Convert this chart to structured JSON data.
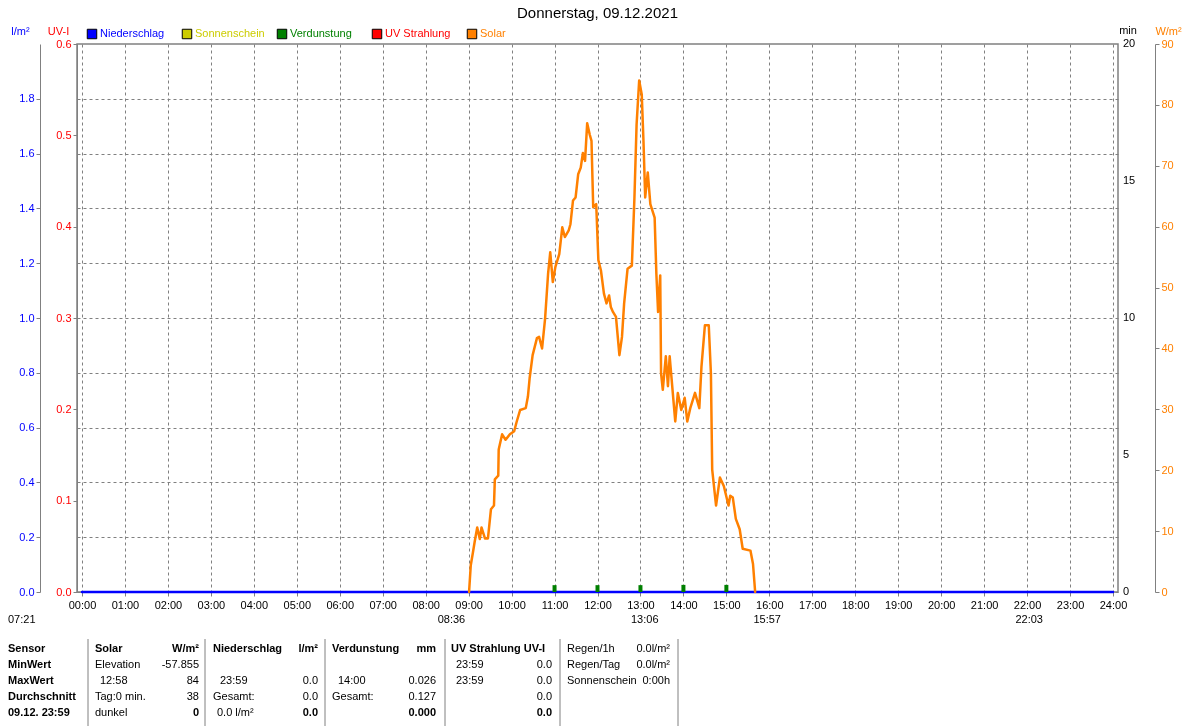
{
  "chart_data": {
    "type": "line",
    "title": "Donnerstag, 09.12.2021",
    "ylabel": "l/m²",
    "y2label": "UV-I",
    "y3label": "W/m²",
    "xlim": [
      0,
      24
    ],
    "xticks": [
      {
        "value": 0,
        "label": "00:00"
      },
      {
        "value": 1,
        "label": "01:00"
      },
      {
        "value": 2,
        "label": "02:00"
      },
      {
        "value": 3,
        "label": "03:00"
      },
      {
        "value": 4,
        "label": "04:00"
      },
      {
        "value": 5,
        "label": "05:00"
      },
      {
        "value": 6,
        "label": "06:00"
      },
      {
        "value": 7,
        "label": "07:00"
      },
      {
        "value": 8,
        "label": "08:00"
      },
      {
        "value": 9,
        "label": "09:00"
      },
      {
        "value": 10,
        "label": "10:00"
      },
      {
        "value": 11,
        "label": "11:00"
      },
      {
        "value": 12,
        "label": "12:00"
      },
      {
        "value": 13,
        "label": "13:00"
      },
      {
        "value": 14,
        "label": "14:00"
      },
      {
        "value": 15,
        "label": "15:00"
      },
      {
        "value": 16,
        "label": "16:00"
      },
      {
        "value": 17,
        "label": "17:00"
      },
      {
        "value": 18,
        "label": "18:00"
      },
      {
        "value": 19,
        "label": "19:00"
      },
      {
        "value": 20,
        "label": "20:00"
      },
      {
        "value": 21,
        "label": "21:00"
      },
      {
        "value": 22,
        "label": "22:00"
      },
      {
        "value": 23,
        "label": "23:00"
      },
      {
        "value": 24,
        "label": "24:00"
      }
    ],
    "ylim": [
      0,
      2
    ],
    "yticks": [
      {
        "value": 0,
        "label": "0.0"
      },
      0.2,
      0.4,
      0.6,
      0.8,
      {
        "value": 1,
        "label": "1.0"
      },
      1.2,
      1.4,
      1.6,
      1.8
    ],
    "y2lim": [
      0,
      0.6
    ],
    "y2ticks": [
      {
        "value": 0,
        "label": "0.0"
      },
      0.1,
      0.2,
      0.3,
      0.4,
      0.5,
      0.6
    ],
    "y3lim": [
      0,
      90
    ],
    "y3ticks": [
      0,
      10,
      20,
      30,
      40,
      50,
      60,
      70,
      80,
      90
    ],
    "grid": true,
    "legend": "top left",
    "series": [
      {
        "name": "Niederschlag",
        "color": "#0000ff",
        "x": [
          0,
          24
        ],
        "values": [
          0,
          0
        ]
      },
      {
        "name": "Sonnenschein",
        "color": "#cccc00"
      },
      {
        "name": "Verdunstung",
        "color": "#008000",
        "type": "bar",
        "x": [
          11,
          12,
          13,
          14,
          15
        ],
        "values": [
          0.025,
          0.025,
          0.025,
          0.026,
          0.026
        ]
      },
      {
        "name": "UV Strahlung",
        "color": "#ff0000",
        "axis": "y2"
      },
      {
        "name": "Solar",
        "color": "#ff8000",
        "axis": "y3",
        "x": [
          9.01,
          9.05,
          9.1,
          9.14,
          9.2,
          9.26,
          9.3,
          9.38,
          9.45,
          9.52,
          9.59,
          9.61,
          9.69,
          9.7,
          9.78,
          9.86,
          9.96,
          10.06,
          10.12,
          10.2,
          10.33,
          10.38,
          10.42,
          10.49,
          10.59,
          10.64,
          10.71,
          10.78,
          10.85,
          10.9,
          10.96,
          11.02,
          11.11,
          11.18,
          11.24,
          11.33,
          11.37,
          11.43,
          11.49,
          11.55,
          11.61,
          11.66,
          11.71,
          11.76,
          11.82,
          11.86,
          11.9,
          11.97,
          12.02,
          12.08,
          12.15,
          12.21,
          12.27,
          12.31,
          12.36,
          12.43,
          12.51,
          12.57,
          12.62,
          12.7,
          12.8,
          12.86,
          12.91,
          12.97,
          13.03,
          13.07,
          13.11,
          13.17,
          13.23,
          13.33,
          13.37,
          13.41,
          13.46,
          13.48,
          13.52,
          13.59,
          13.64,
          13.68,
          13.76,
          13.81,
          13.87,
          13.95,
          14.03,
          14.09,
          14.16,
          14.27,
          14.37,
          14.42,
          14.5,
          14.59,
          14.64,
          14.67,
          14.76,
          14.85,
          14.94,
          15.05,
          15.09,
          15.15,
          15.22,
          15.31,
          15.38,
          15.56,
          15.62,
          15.67
        ],
        "values": [
          0,
          4.4,
          6.5,
          8.2,
          10.6,
          8.7,
          10.6,
          8.8,
          8.8,
          13.6,
          14.2,
          18.5,
          19.1,
          23.4,
          25.9,
          25.0,
          25.9,
          26.4,
          28.0,
          29.9,
          30.2,
          32.1,
          35.1,
          38.9,
          41.7,
          41.9,
          40.0,
          44.9,
          52.3,
          55.8,
          50.9,
          53.4,
          55.5,
          59.9,
          58.3,
          59.4,
          60.4,
          64.3,
          64.8,
          68.6,
          69.7,
          72.1,
          70.8,
          77.0,
          75.1,
          74.1,
          63.2,
          63.7,
          54.5,
          52.8,
          49.0,
          47.4,
          48.7,
          46.8,
          46.0,
          45.2,
          38.9,
          41.9,
          47.4,
          53.1,
          53.6,
          64.8,
          76.8,
          84,
          81.7,
          74.1,
          64.8,
          68.9,
          63.7,
          61.5,
          52.3,
          46.0,
          52.0,
          35.9,
          33.2,
          38.7,
          33.8,
          38.7,
          32.1,
          28.0,
          32.7,
          29.9,
          31.9,
          28.0,
          30.2,
          32.7,
          30.2,
          37.0,
          43.8,
          43.8,
          35.9,
          20.1,
          14.2,
          18.8,
          17.4,
          14.2,
          15.8,
          15.5,
          12.0,
          10.3,
          7.1,
          6.8,
          4.6,
          0
        ]
      }
    ],
    "annotations": [
      "min",
      "20",
      "15",
      "10",
      "5",
      "0",
      "07:21",
      {
        "text": "08:36",
        "x": 8.6,
        "y": 0
      },
      {
        "text": "13:06",
        "x": 13.1,
        "y": 0
      },
      {
        "text": "15:57",
        "x": 15.95,
        "y": 0
      },
      {
        "text": "22:03",
        "x": 22.05,
        "y": 0
      },
      "Sensor",
      "Solar",
      "W/m²",
      "Niederschlag",
      "l/m²",
      "Verdunstung",
      "mm",
      "UV Strahlung UV-I",
      "Regen/1h",
      "0.0l/m²",
      "MinWert",
      "Elevation",
      "-57.855",
      "23:59",
      "0.0",
      "Regen/Tag",
      "0.0l/m²",
      "MaxWert",
      "12:58",
      "84",
      "23:59",
      "0.0",
      "14:00",
      "0.026",
      "23:59",
      "0.0",
      "Sonnenschein",
      "0:00h",
      "Durchschnitt",
      "Tag:0 min.",
      "38",
      "Gesamt:",
      "0.0",
      "Gesamt:",
      "0.127",
      "0.0",
      "09.12. 23:59",
      "dunkel",
      "0",
      "0.0 l/m²",
      "0.0",
      "0.000",
      "0.0"
    ]
  }
}
